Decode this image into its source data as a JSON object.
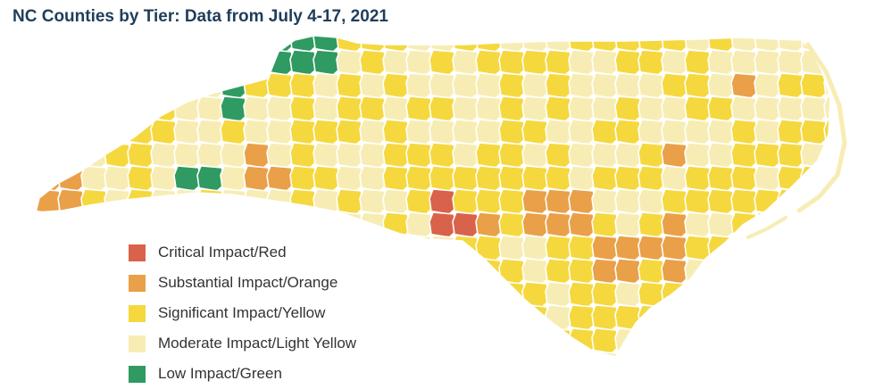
{
  "title": "NC Counties by Tier: Data from July 4-17, 2021",
  "colors": {
    "critical": "#d9624a",
    "substantial": "#e9a048",
    "significant": "#f5d83e",
    "moderate": "#f7edb4",
    "low": "#2f9a61",
    "border": "#ffffff"
  },
  "legend": [
    {
      "label": "Critical Impact/Red",
      "tier": "critical"
    },
    {
      "label": "Substantial Impact/Orange",
      "tier": "substantial"
    },
    {
      "label": "Significant Impact/Yellow",
      "tier": "significant"
    },
    {
      "label": "Moderate Impact/Light Yellow",
      "tier": "moderate"
    },
    {
      "label": "Low Impact/Green",
      "tier": "low"
    }
  ]
}
